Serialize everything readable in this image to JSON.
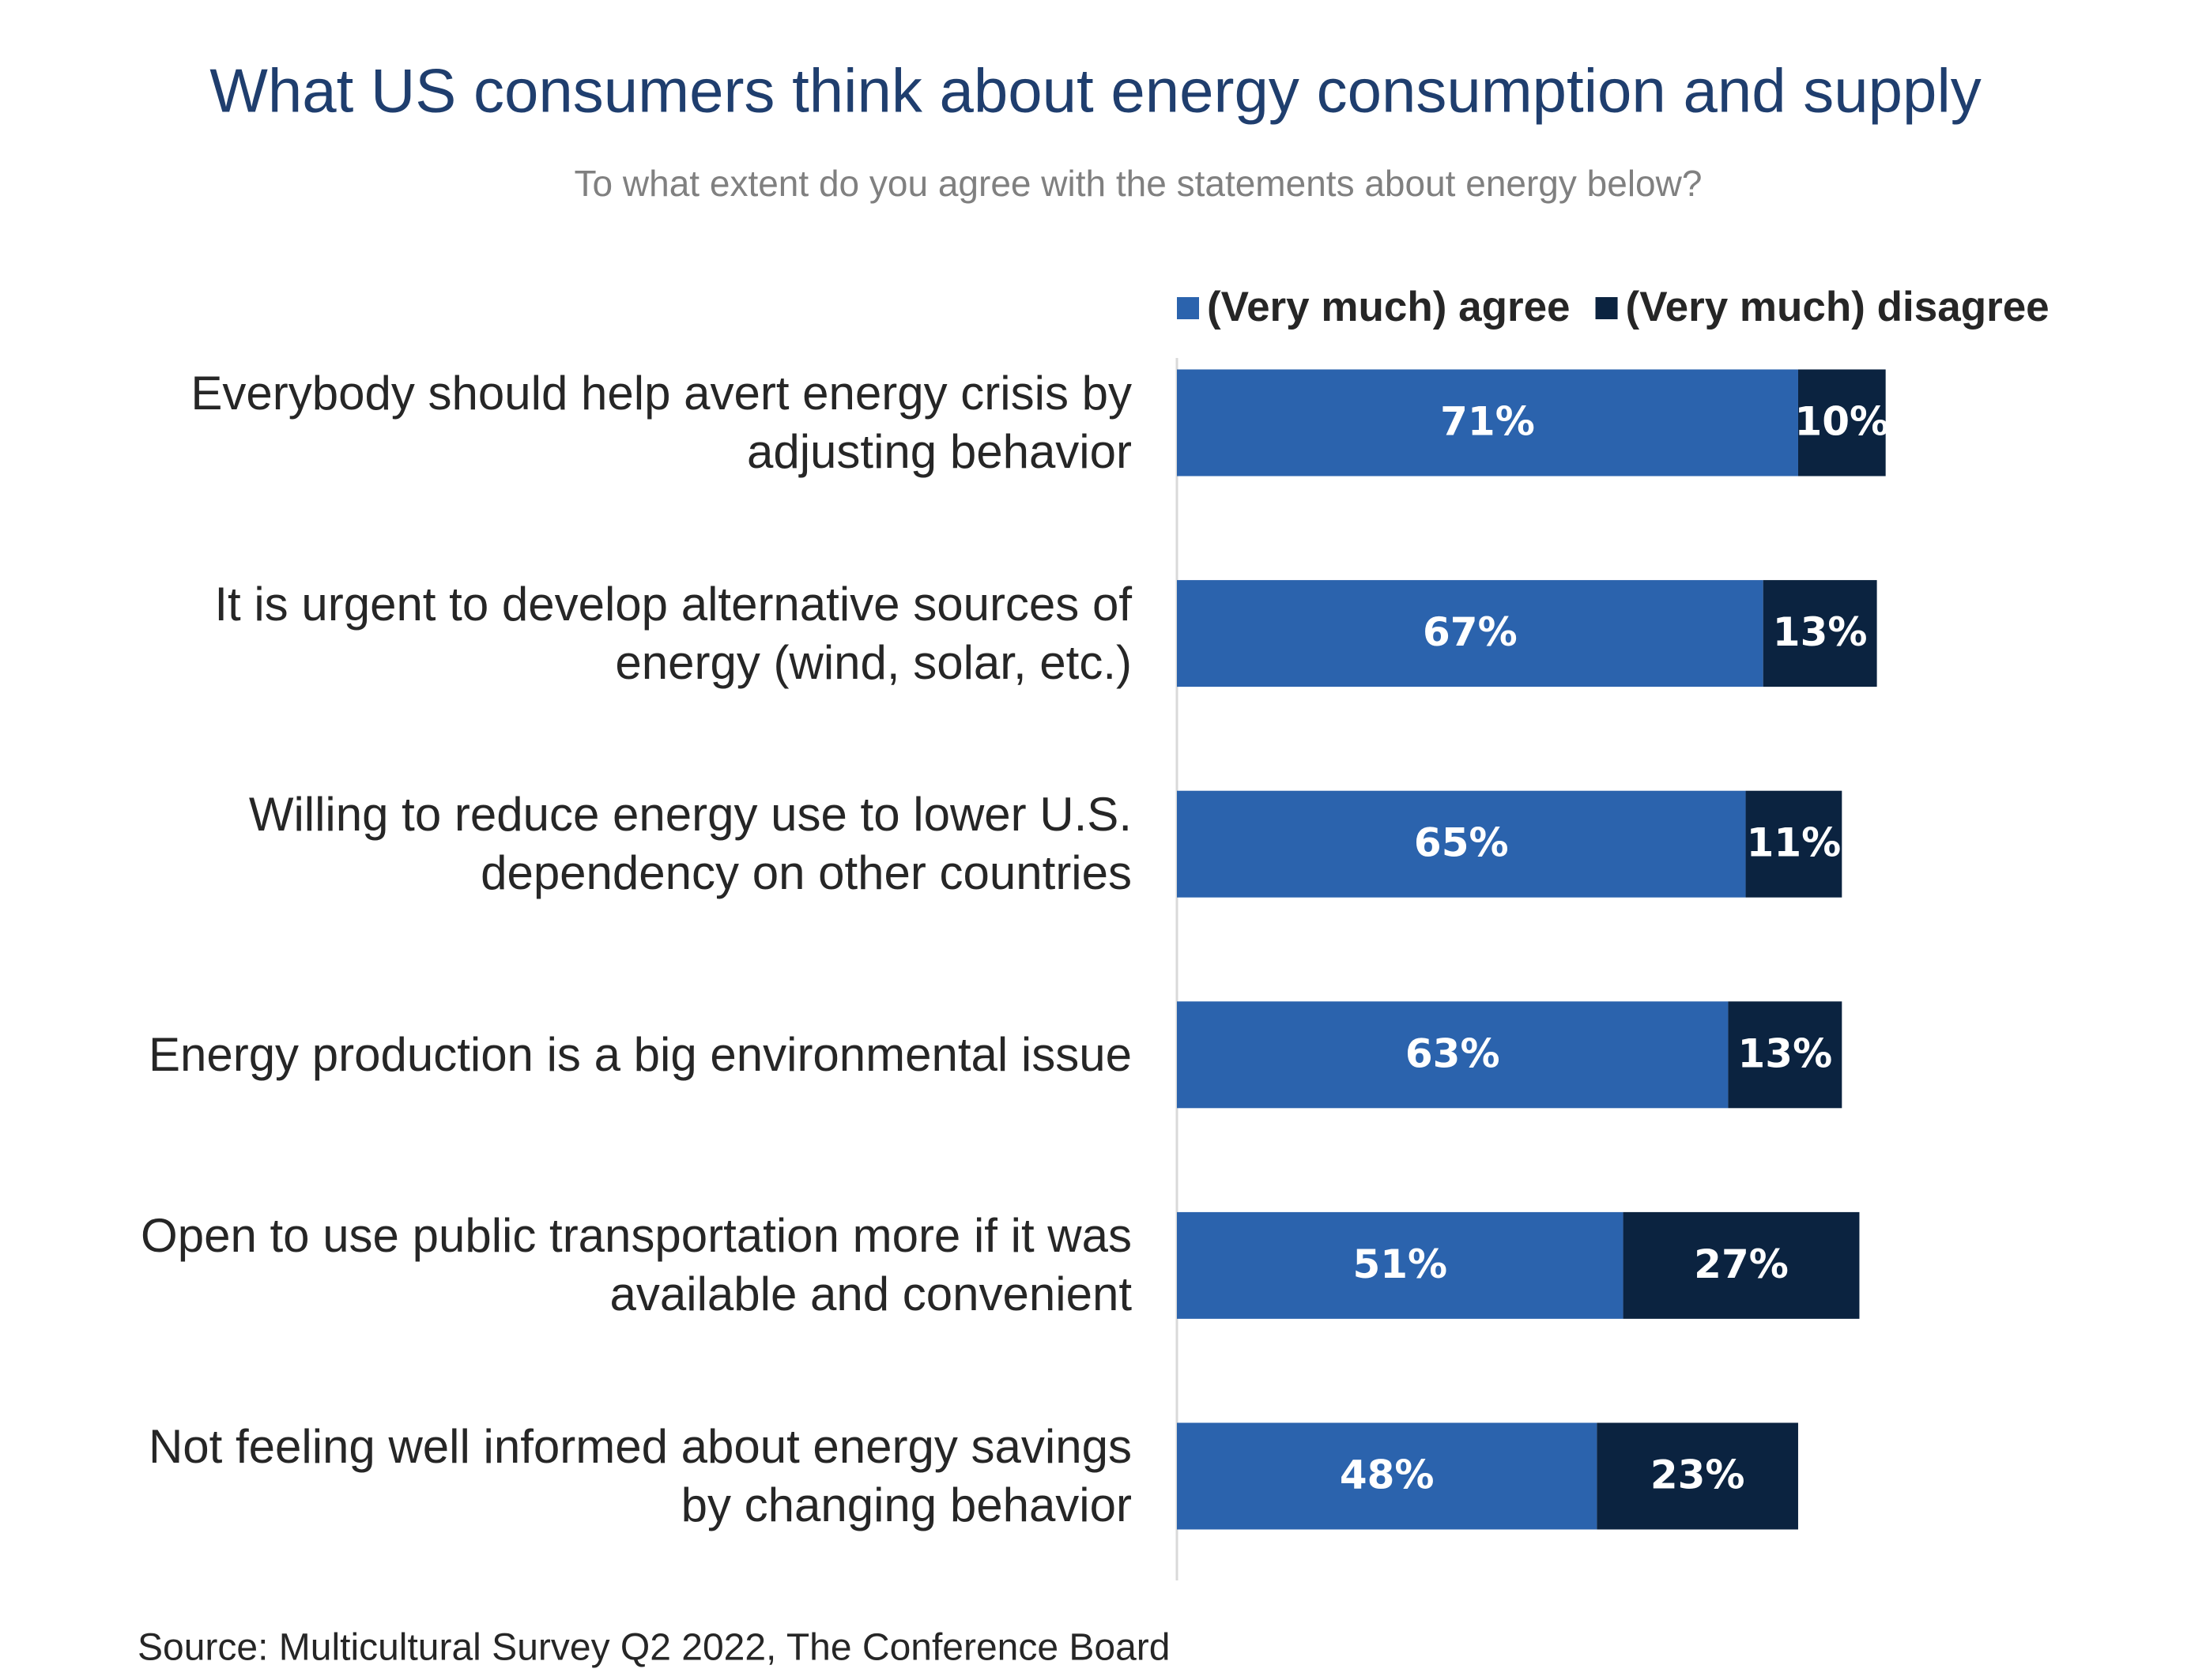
{
  "chart_data": {
    "type": "stacked_bar_horizontal",
    "title": "What US consumers think about energy consumption and supply",
    "subtitle": "To what extent do you agree with the statements about energy below?",
    "categories": [
      "Everybody should help avert energy crisis by adjusting behavior",
      "It is urgent to develop alternative sources of energy (wind, solar, etc.)",
      "Willing to reduce energy use to lower U.S. dependency on other countries",
      "Energy production is a big environmental issue",
      "Open to use public transportation more if it was available and convenient",
      "Not feeling well informed about energy savings by changing behavior"
    ],
    "series": [
      {
        "name": "(Very much) agree",
        "color": "#2b63ad",
        "values": [
          71,
          67,
          65,
          63,
          51,
          48
        ],
        "value_labels": [
          "71%",
          "67%",
          "65%",
          "63%",
          "51%",
          "48%"
        ]
      },
      {
        "name": "(Very much) disagree",
        "color": "#0b2340",
        "values": [
          10,
          13,
          11,
          13,
          27,
          23
        ],
        "value_labels": [
          "10%",
          "13%",
          "11%",
          "13%",
          "27%",
          "23%"
        ]
      }
    ],
    "source": "Source: Multicultural Survey Q2 2022, The Conference Board"
  }
}
